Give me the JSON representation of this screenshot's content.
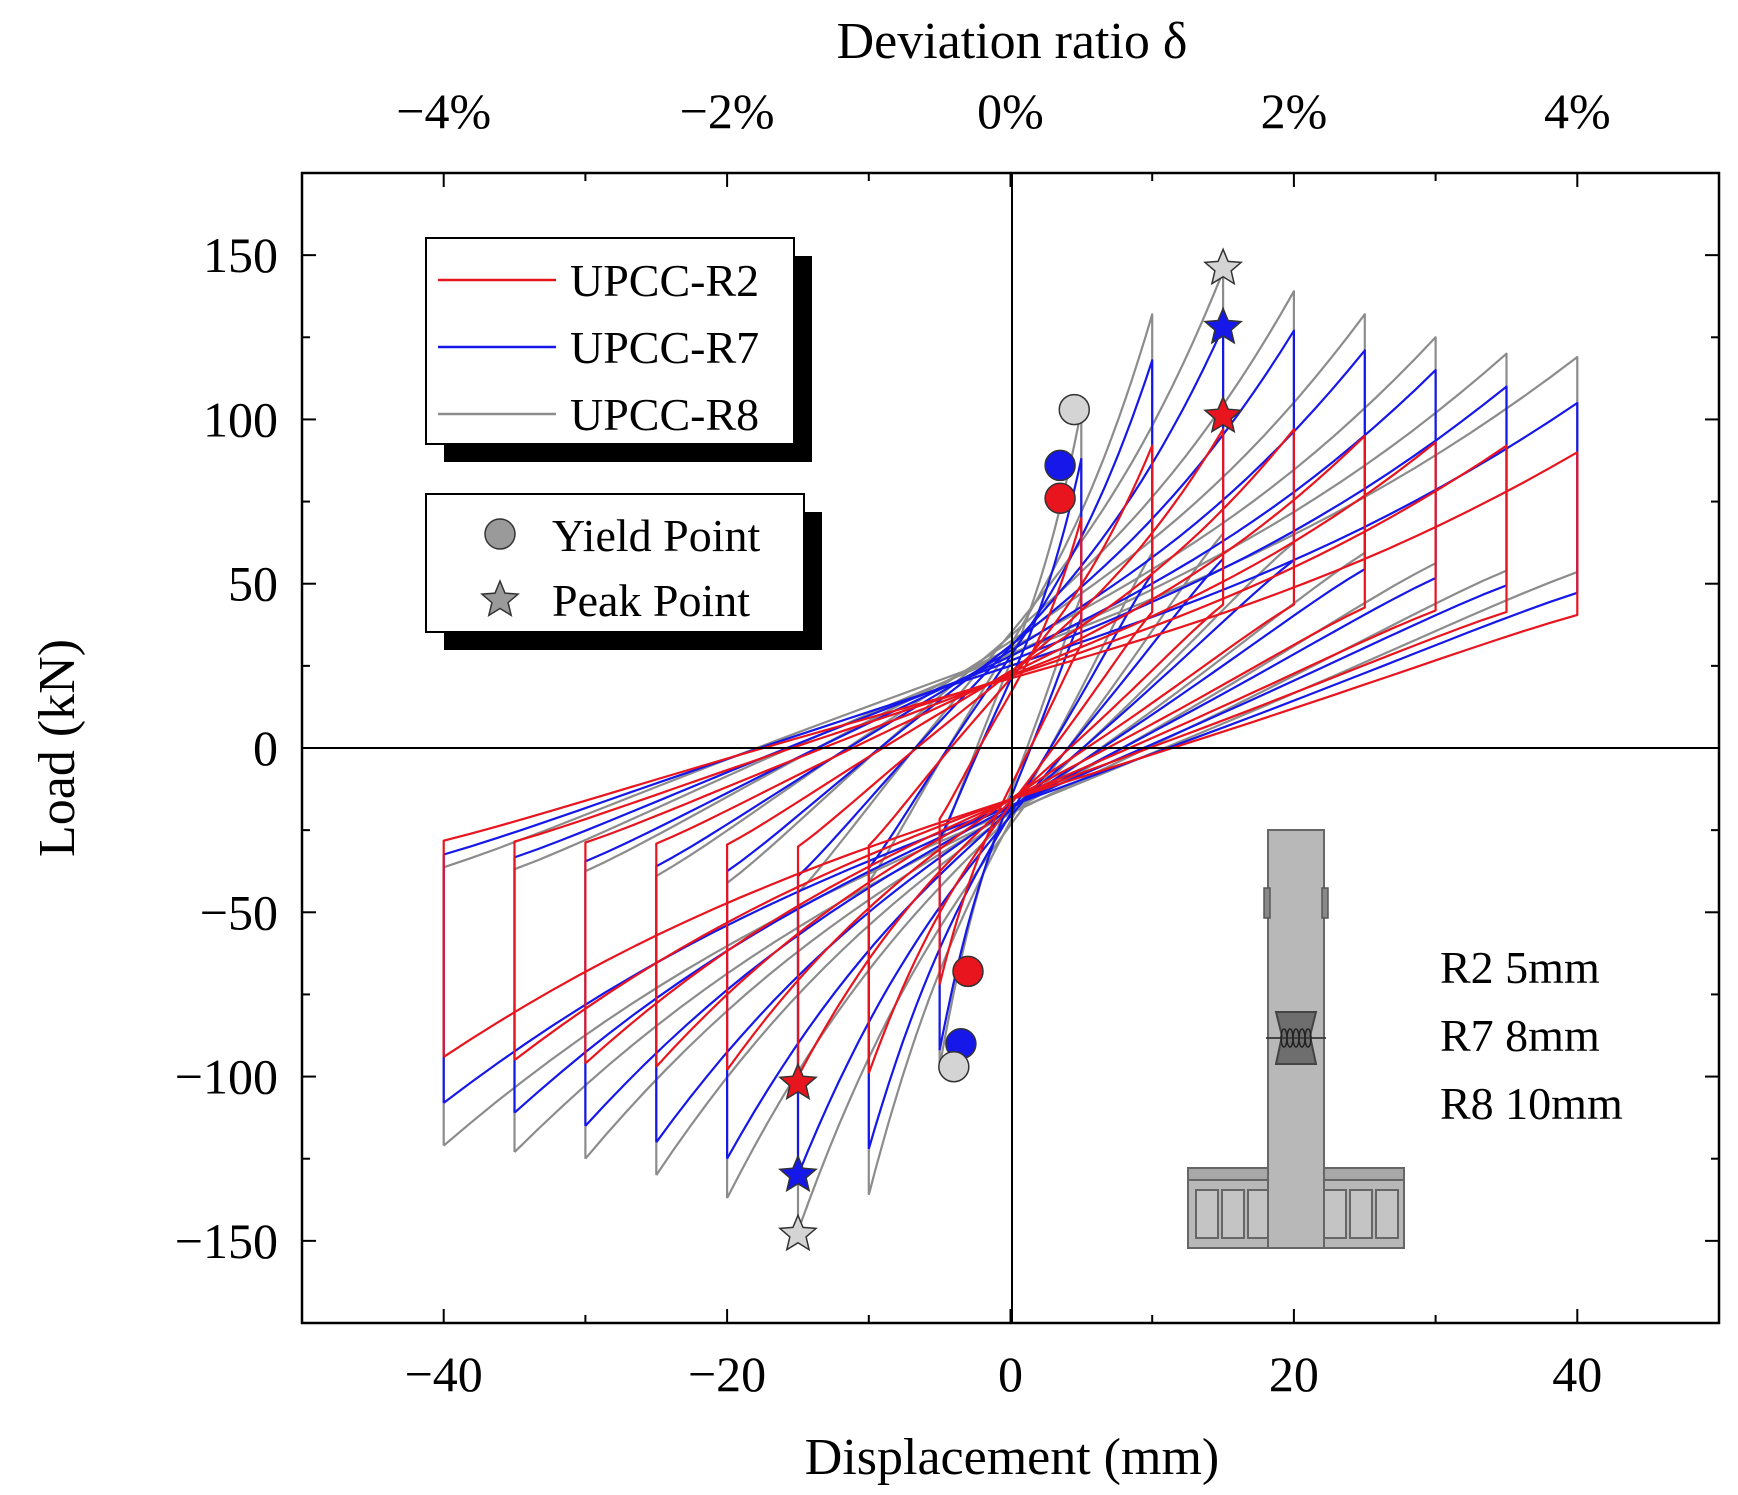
{
  "chart_data": {
    "type": "line",
    "title": "",
    "xlabel": "Displacement (mm)",
    "ylabel": "Load (kN)",
    "top_xlabel": "Deviation ratio δ",
    "xlim": [
      -50,
      50
    ],
    "ylim": [
      -175,
      175
    ],
    "xticks": [
      -40,
      -20,
      0,
      20,
      40
    ],
    "xtick_labels": [
      "−40",
      "−20",
      "0",
      "20",
      "40"
    ],
    "yticks": [
      -150,
      -100,
      -50,
      0,
      50,
      100,
      150
    ],
    "ytick_labels": [
      "−150",
      "−100",
      "−50",
      "0",
      "50",
      "100",
      "150"
    ],
    "top_ticks_mm": [
      -40,
      -20,
      0,
      20,
      40
    ],
    "top_tick_labels": [
      "−4%",
      "−2%",
      "0%",
      "2%",
      "4%"
    ],
    "grid": false,
    "legend_position": "top-left",
    "marker_legend_position": "upper-left",
    "series": [
      {
        "name": "UPCC-R2",
        "color": "#e8141e",
        "cycles": [
          {
            "d": 5,
            "pos": 70,
            "neg": -72
          },
          {
            "d": 10,
            "pos": 92,
            "neg": -99
          },
          {
            "d": 15,
            "pos": 97,
            "neg": -100
          },
          {
            "d": 20,
            "pos": 97,
            "neg": -98
          },
          {
            "d": 25,
            "pos": 95,
            "neg": -97
          },
          {
            "d": 30,
            "pos": 93,
            "neg": -96
          },
          {
            "d": 35,
            "pos": 92,
            "neg": -95
          },
          {
            "d": 40,
            "pos": 90,
            "neg": -94
          }
        ],
        "yield": {
          "x": 3.5,
          "y": 76,
          "xn": -3.0,
          "yn": -68
        },
        "peak": {
          "x": 15,
          "y": 101,
          "xn": -15,
          "yn": -102
        }
      },
      {
        "name": "UPCC-R7",
        "color": "#1518e8",
        "cycles": [
          {
            "d": 5,
            "pos": 88,
            "neg": -92
          },
          {
            "d": 10,
            "pos": 118,
            "neg": -122
          },
          {
            "d": 15,
            "pos": 128,
            "neg": -130
          },
          {
            "d": 20,
            "pos": 127,
            "neg": -125
          },
          {
            "d": 25,
            "pos": 121,
            "neg": -120
          },
          {
            "d": 30,
            "pos": 115,
            "neg": -115
          },
          {
            "d": 35,
            "pos": 110,
            "neg": -111
          },
          {
            "d": 40,
            "pos": 105,
            "neg": -108
          }
        ],
        "yield": {
          "x": 3.5,
          "y": 86,
          "xn": -3.5,
          "yn": -90
        },
        "peak": {
          "x": 15,
          "y": 128,
          "xn": -15,
          "yn": -130
        }
      },
      {
        "name": "UPCC-R8",
        "color": "#8c8c8c",
        "cycles": [
          {
            "d": 5,
            "pos": 103,
            "neg": -97
          },
          {
            "d": 10,
            "pos": 132,
            "neg": -136
          },
          {
            "d": 15,
            "pos": 145,
            "neg": -147
          },
          {
            "d": 20,
            "pos": 139,
            "neg": -137
          },
          {
            "d": 25,
            "pos": 132,
            "neg": -130
          },
          {
            "d": 30,
            "pos": 125,
            "neg": -125
          },
          {
            "d": 35,
            "pos": 120,
            "neg": -123
          },
          {
            "d": 40,
            "pos": 119,
            "neg": -121
          }
        ],
        "yield": {
          "x": 4.5,
          "y": 103,
          "xn": -4.0,
          "yn": -97
        },
        "peak": {
          "x": 15,
          "y": 146,
          "xn": -15,
          "yn": -148
        }
      }
    ],
    "marker_legend": [
      {
        "label": "Yield Point",
        "marker": "circle"
      },
      {
        "label": "Peak Point",
        "marker": "star"
      }
    ],
    "annotations": [
      "R2 5mm",
      "R7 8mm",
      "R8 10mm"
    ],
    "colors": {
      "yield_fill": "#d4d4d4",
      "marker_gray": "#9a9a9a",
      "specimen_gray": "#b8b8b8"
    }
  }
}
